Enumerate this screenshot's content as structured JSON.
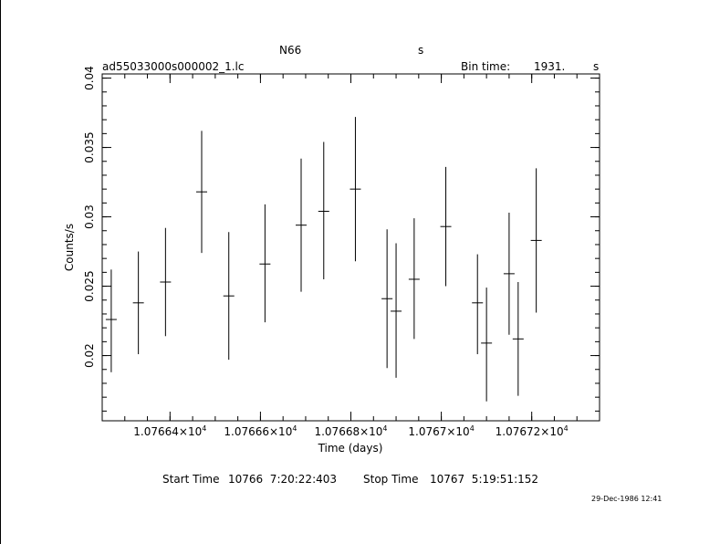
{
  "header": {
    "object": "N66",
    "object_suffix": "s",
    "filename": "ad55033000s000002_1.lc",
    "bin_time_label": "Bin time:",
    "bin_time_value": "1931.",
    "bin_time_unit": "s"
  },
  "footer": {
    "start_label": "Start Time",
    "start_value": "10766  7:20:22:403",
    "stop_label": "Stop Time",
    "stop_value": "10767  5:19:51:152",
    "timestamp": "29-Dec-1986 12:41"
  },
  "chart_data": {
    "type": "scatter",
    "xlabel": "Time (days)",
    "ylabel": "Counts/s",
    "xlim": [
      10766.25,
      10767.35
    ],
    "ylim": [
      0.0153,
      0.0403
    ],
    "x_ticks": [
      {
        "value": 10766.4,
        "label": "1.07664×10",
        "exp": "4"
      },
      {
        "value": 10766.6,
        "label": "1.07666×10",
        "exp": "4"
      },
      {
        "value": 10766.8,
        "label": "1.07668×10",
        "exp": "4"
      },
      {
        "value": 10767.0,
        "label": "1.0767×10",
        "exp": "4"
      },
      {
        "value": 10767.2,
        "label": "1.07672×10",
        "exp": "4"
      }
    ],
    "y_ticks": [
      {
        "value": 0.02,
        "label": "0.02"
      },
      {
        "value": 0.025,
        "label": "0.025"
      },
      {
        "value": 0.03,
        "label": "0.03"
      },
      {
        "value": 0.035,
        "label": "0.035"
      },
      {
        "value": 0.04,
        "label": "0.04"
      }
    ],
    "grid": false,
    "points": [
      {
        "x": 10766.27,
        "y": 0.0226,
        "ylo": 0.0188,
        "yhi": 0.0262
      },
      {
        "x": 10766.33,
        "y": 0.0238,
        "ylo": 0.0201,
        "yhi": 0.0275
      },
      {
        "x": 10766.39,
        "y": 0.0253,
        "ylo": 0.0214,
        "yhi": 0.0292
      },
      {
        "x": 10766.47,
        "y": 0.0318,
        "ylo": 0.0274,
        "yhi": 0.0362
      },
      {
        "x": 10766.53,
        "y": 0.0243,
        "ylo": 0.0197,
        "yhi": 0.0289
      },
      {
        "x": 10766.61,
        "y": 0.0266,
        "ylo": 0.0224,
        "yhi": 0.0309
      },
      {
        "x": 10766.69,
        "y": 0.0294,
        "ylo": 0.0246,
        "yhi": 0.0342
      },
      {
        "x": 10766.74,
        "y": 0.0304,
        "ylo": 0.0255,
        "yhi": 0.0354
      },
      {
        "x": 10766.81,
        "y": 0.032,
        "ylo": 0.0268,
        "yhi": 0.0372
      },
      {
        "x": 10766.88,
        "y": 0.0241,
        "ylo": 0.0191,
        "yhi": 0.0291
      },
      {
        "x": 10766.9,
        "y": 0.0232,
        "ylo": 0.0184,
        "yhi": 0.0281
      },
      {
        "x": 10766.94,
        "y": 0.0255,
        "ylo": 0.0212,
        "yhi": 0.0299
      },
      {
        "x": 10767.01,
        "y": 0.0293,
        "ylo": 0.025,
        "yhi": 0.0336
      },
      {
        "x": 10767.08,
        "y": 0.0238,
        "ylo": 0.0201,
        "yhi": 0.0273
      },
      {
        "x": 10767.1,
        "y": 0.0209,
        "ylo": 0.0167,
        "yhi": 0.0249
      },
      {
        "x": 10767.15,
        "y": 0.0259,
        "ylo": 0.0215,
        "yhi": 0.0303
      },
      {
        "x": 10767.17,
        "y": 0.0212,
        "ylo": 0.0171,
        "yhi": 0.0253
      },
      {
        "x": 10767.21,
        "y": 0.0283,
        "ylo": 0.0231,
        "yhi": 0.0335
      }
    ]
  }
}
